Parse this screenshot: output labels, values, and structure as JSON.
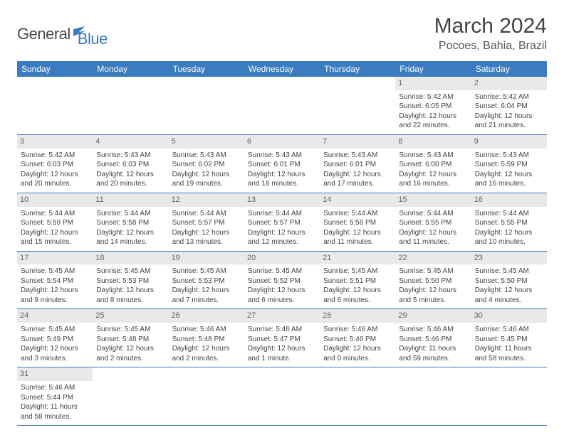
{
  "logo": {
    "text1": "General",
    "text2": "Blue"
  },
  "title": "March 2024",
  "location": "Pocoes, Bahia, Brazil",
  "colors": {
    "header_bg": "#3b7bbf",
    "header_text": "#ffffff",
    "daynum_bg": "#e9e9e9",
    "text": "#444444",
    "row_border": "#3b7bbf"
  },
  "typography": {
    "title_fontsize": 30,
    "location_fontsize": 16,
    "weekday_fontsize": 12,
    "cell_fontsize": 10
  },
  "weekdays": [
    "Sunday",
    "Monday",
    "Tuesday",
    "Wednesday",
    "Thursday",
    "Friday",
    "Saturday"
  ],
  "weeks": [
    [
      {
        "day": ""
      },
      {
        "day": ""
      },
      {
        "day": ""
      },
      {
        "day": ""
      },
      {
        "day": ""
      },
      {
        "day": "1",
        "sunrise": "Sunrise: 5:42 AM",
        "sunset": "Sunset: 6:05 PM",
        "dl1": "Daylight: 12 hours",
        "dl2": "and 22 minutes."
      },
      {
        "day": "2",
        "sunrise": "Sunrise: 5:42 AM",
        "sunset": "Sunset: 6:04 PM",
        "dl1": "Daylight: 12 hours",
        "dl2": "and 21 minutes."
      }
    ],
    [
      {
        "day": "3",
        "sunrise": "Sunrise: 5:42 AM",
        "sunset": "Sunset: 6:03 PM",
        "dl1": "Daylight: 12 hours",
        "dl2": "and 20 minutes."
      },
      {
        "day": "4",
        "sunrise": "Sunrise: 5:43 AM",
        "sunset": "Sunset: 6:03 PM",
        "dl1": "Daylight: 12 hours",
        "dl2": "and 20 minutes."
      },
      {
        "day": "5",
        "sunrise": "Sunrise: 5:43 AM",
        "sunset": "Sunset: 6:02 PM",
        "dl1": "Daylight: 12 hours",
        "dl2": "and 19 minutes."
      },
      {
        "day": "6",
        "sunrise": "Sunrise: 5:43 AM",
        "sunset": "Sunset: 6:01 PM",
        "dl1": "Daylight: 12 hours",
        "dl2": "and 18 minutes."
      },
      {
        "day": "7",
        "sunrise": "Sunrise: 5:43 AM",
        "sunset": "Sunset: 6:01 PM",
        "dl1": "Daylight: 12 hours",
        "dl2": "and 17 minutes."
      },
      {
        "day": "8",
        "sunrise": "Sunrise: 5:43 AM",
        "sunset": "Sunset: 6:00 PM",
        "dl1": "Daylight: 12 hours",
        "dl2": "and 16 minutes."
      },
      {
        "day": "9",
        "sunrise": "Sunrise: 5:43 AM",
        "sunset": "Sunset: 5:59 PM",
        "dl1": "Daylight: 12 hours",
        "dl2": "and 16 minutes."
      }
    ],
    [
      {
        "day": "10",
        "sunrise": "Sunrise: 5:44 AM",
        "sunset": "Sunset: 5:59 PM",
        "dl1": "Daylight: 12 hours",
        "dl2": "and 15 minutes."
      },
      {
        "day": "11",
        "sunrise": "Sunrise: 5:44 AM",
        "sunset": "Sunset: 5:58 PM",
        "dl1": "Daylight: 12 hours",
        "dl2": "and 14 minutes."
      },
      {
        "day": "12",
        "sunrise": "Sunrise: 5:44 AM",
        "sunset": "Sunset: 5:57 PM",
        "dl1": "Daylight: 12 hours",
        "dl2": "and 13 minutes."
      },
      {
        "day": "13",
        "sunrise": "Sunrise: 5:44 AM",
        "sunset": "Sunset: 5:57 PM",
        "dl1": "Daylight: 12 hours",
        "dl2": "and 12 minutes."
      },
      {
        "day": "14",
        "sunrise": "Sunrise: 5:44 AM",
        "sunset": "Sunset: 5:56 PM",
        "dl1": "Daylight: 12 hours",
        "dl2": "and 11 minutes."
      },
      {
        "day": "15",
        "sunrise": "Sunrise: 5:44 AM",
        "sunset": "Sunset: 5:55 PM",
        "dl1": "Daylight: 12 hours",
        "dl2": "and 11 minutes."
      },
      {
        "day": "16",
        "sunrise": "Sunrise: 5:44 AM",
        "sunset": "Sunset: 5:55 PM",
        "dl1": "Daylight: 12 hours",
        "dl2": "and 10 minutes."
      }
    ],
    [
      {
        "day": "17",
        "sunrise": "Sunrise: 5:45 AM",
        "sunset": "Sunset: 5:54 PM",
        "dl1": "Daylight: 12 hours",
        "dl2": "and 9 minutes."
      },
      {
        "day": "18",
        "sunrise": "Sunrise: 5:45 AM",
        "sunset": "Sunset: 5:53 PM",
        "dl1": "Daylight: 12 hours",
        "dl2": "and 8 minutes."
      },
      {
        "day": "19",
        "sunrise": "Sunrise: 5:45 AM",
        "sunset": "Sunset: 5:53 PM",
        "dl1": "Daylight: 12 hours",
        "dl2": "and 7 minutes."
      },
      {
        "day": "20",
        "sunrise": "Sunrise: 5:45 AM",
        "sunset": "Sunset: 5:52 PM",
        "dl1": "Daylight: 12 hours",
        "dl2": "and 6 minutes."
      },
      {
        "day": "21",
        "sunrise": "Sunrise: 5:45 AM",
        "sunset": "Sunset: 5:51 PM",
        "dl1": "Daylight: 12 hours",
        "dl2": "and 6 minutes."
      },
      {
        "day": "22",
        "sunrise": "Sunrise: 5:45 AM",
        "sunset": "Sunset: 5:50 PM",
        "dl1": "Daylight: 12 hours",
        "dl2": "and 5 minutes."
      },
      {
        "day": "23",
        "sunrise": "Sunrise: 5:45 AM",
        "sunset": "Sunset: 5:50 PM",
        "dl1": "Daylight: 12 hours",
        "dl2": "and 4 minutes."
      }
    ],
    [
      {
        "day": "24",
        "sunrise": "Sunrise: 5:45 AM",
        "sunset": "Sunset: 5:49 PM",
        "dl1": "Daylight: 12 hours",
        "dl2": "and 3 minutes."
      },
      {
        "day": "25",
        "sunrise": "Sunrise: 5:45 AM",
        "sunset": "Sunset: 5:48 PM",
        "dl1": "Daylight: 12 hours",
        "dl2": "and 2 minutes."
      },
      {
        "day": "26",
        "sunrise": "Sunrise: 5:46 AM",
        "sunset": "Sunset: 5:48 PM",
        "dl1": "Daylight: 12 hours",
        "dl2": "and 2 minutes."
      },
      {
        "day": "27",
        "sunrise": "Sunrise: 5:46 AM",
        "sunset": "Sunset: 5:47 PM",
        "dl1": "Daylight: 12 hours",
        "dl2": "and 1 minute."
      },
      {
        "day": "28",
        "sunrise": "Sunrise: 5:46 AM",
        "sunset": "Sunset: 5:46 PM",
        "dl1": "Daylight: 12 hours",
        "dl2": "and 0 minutes."
      },
      {
        "day": "29",
        "sunrise": "Sunrise: 5:46 AM",
        "sunset": "Sunset: 5:46 PM",
        "dl1": "Daylight: 11 hours",
        "dl2": "and 59 minutes."
      },
      {
        "day": "30",
        "sunrise": "Sunrise: 5:46 AM",
        "sunset": "Sunset: 5:45 PM",
        "dl1": "Daylight: 11 hours",
        "dl2": "and 58 minutes."
      }
    ],
    [
      {
        "day": "31",
        "sunrise": "Sunrise: 5:46 AM",
        "sunset": "Sunset: 5:44 PM",
        "dl1": "Daylight: 11 hours",
        "dl2": "and 58 minutes."
      },
      {
        "day": ""
      },
      {
        "day": ""
      },
      {
        "day": ""
      },
      {
        "day": ""
      },
      {
        "day": ""
      },
      {
        "day": ""
      }
    ]
  ]
}
